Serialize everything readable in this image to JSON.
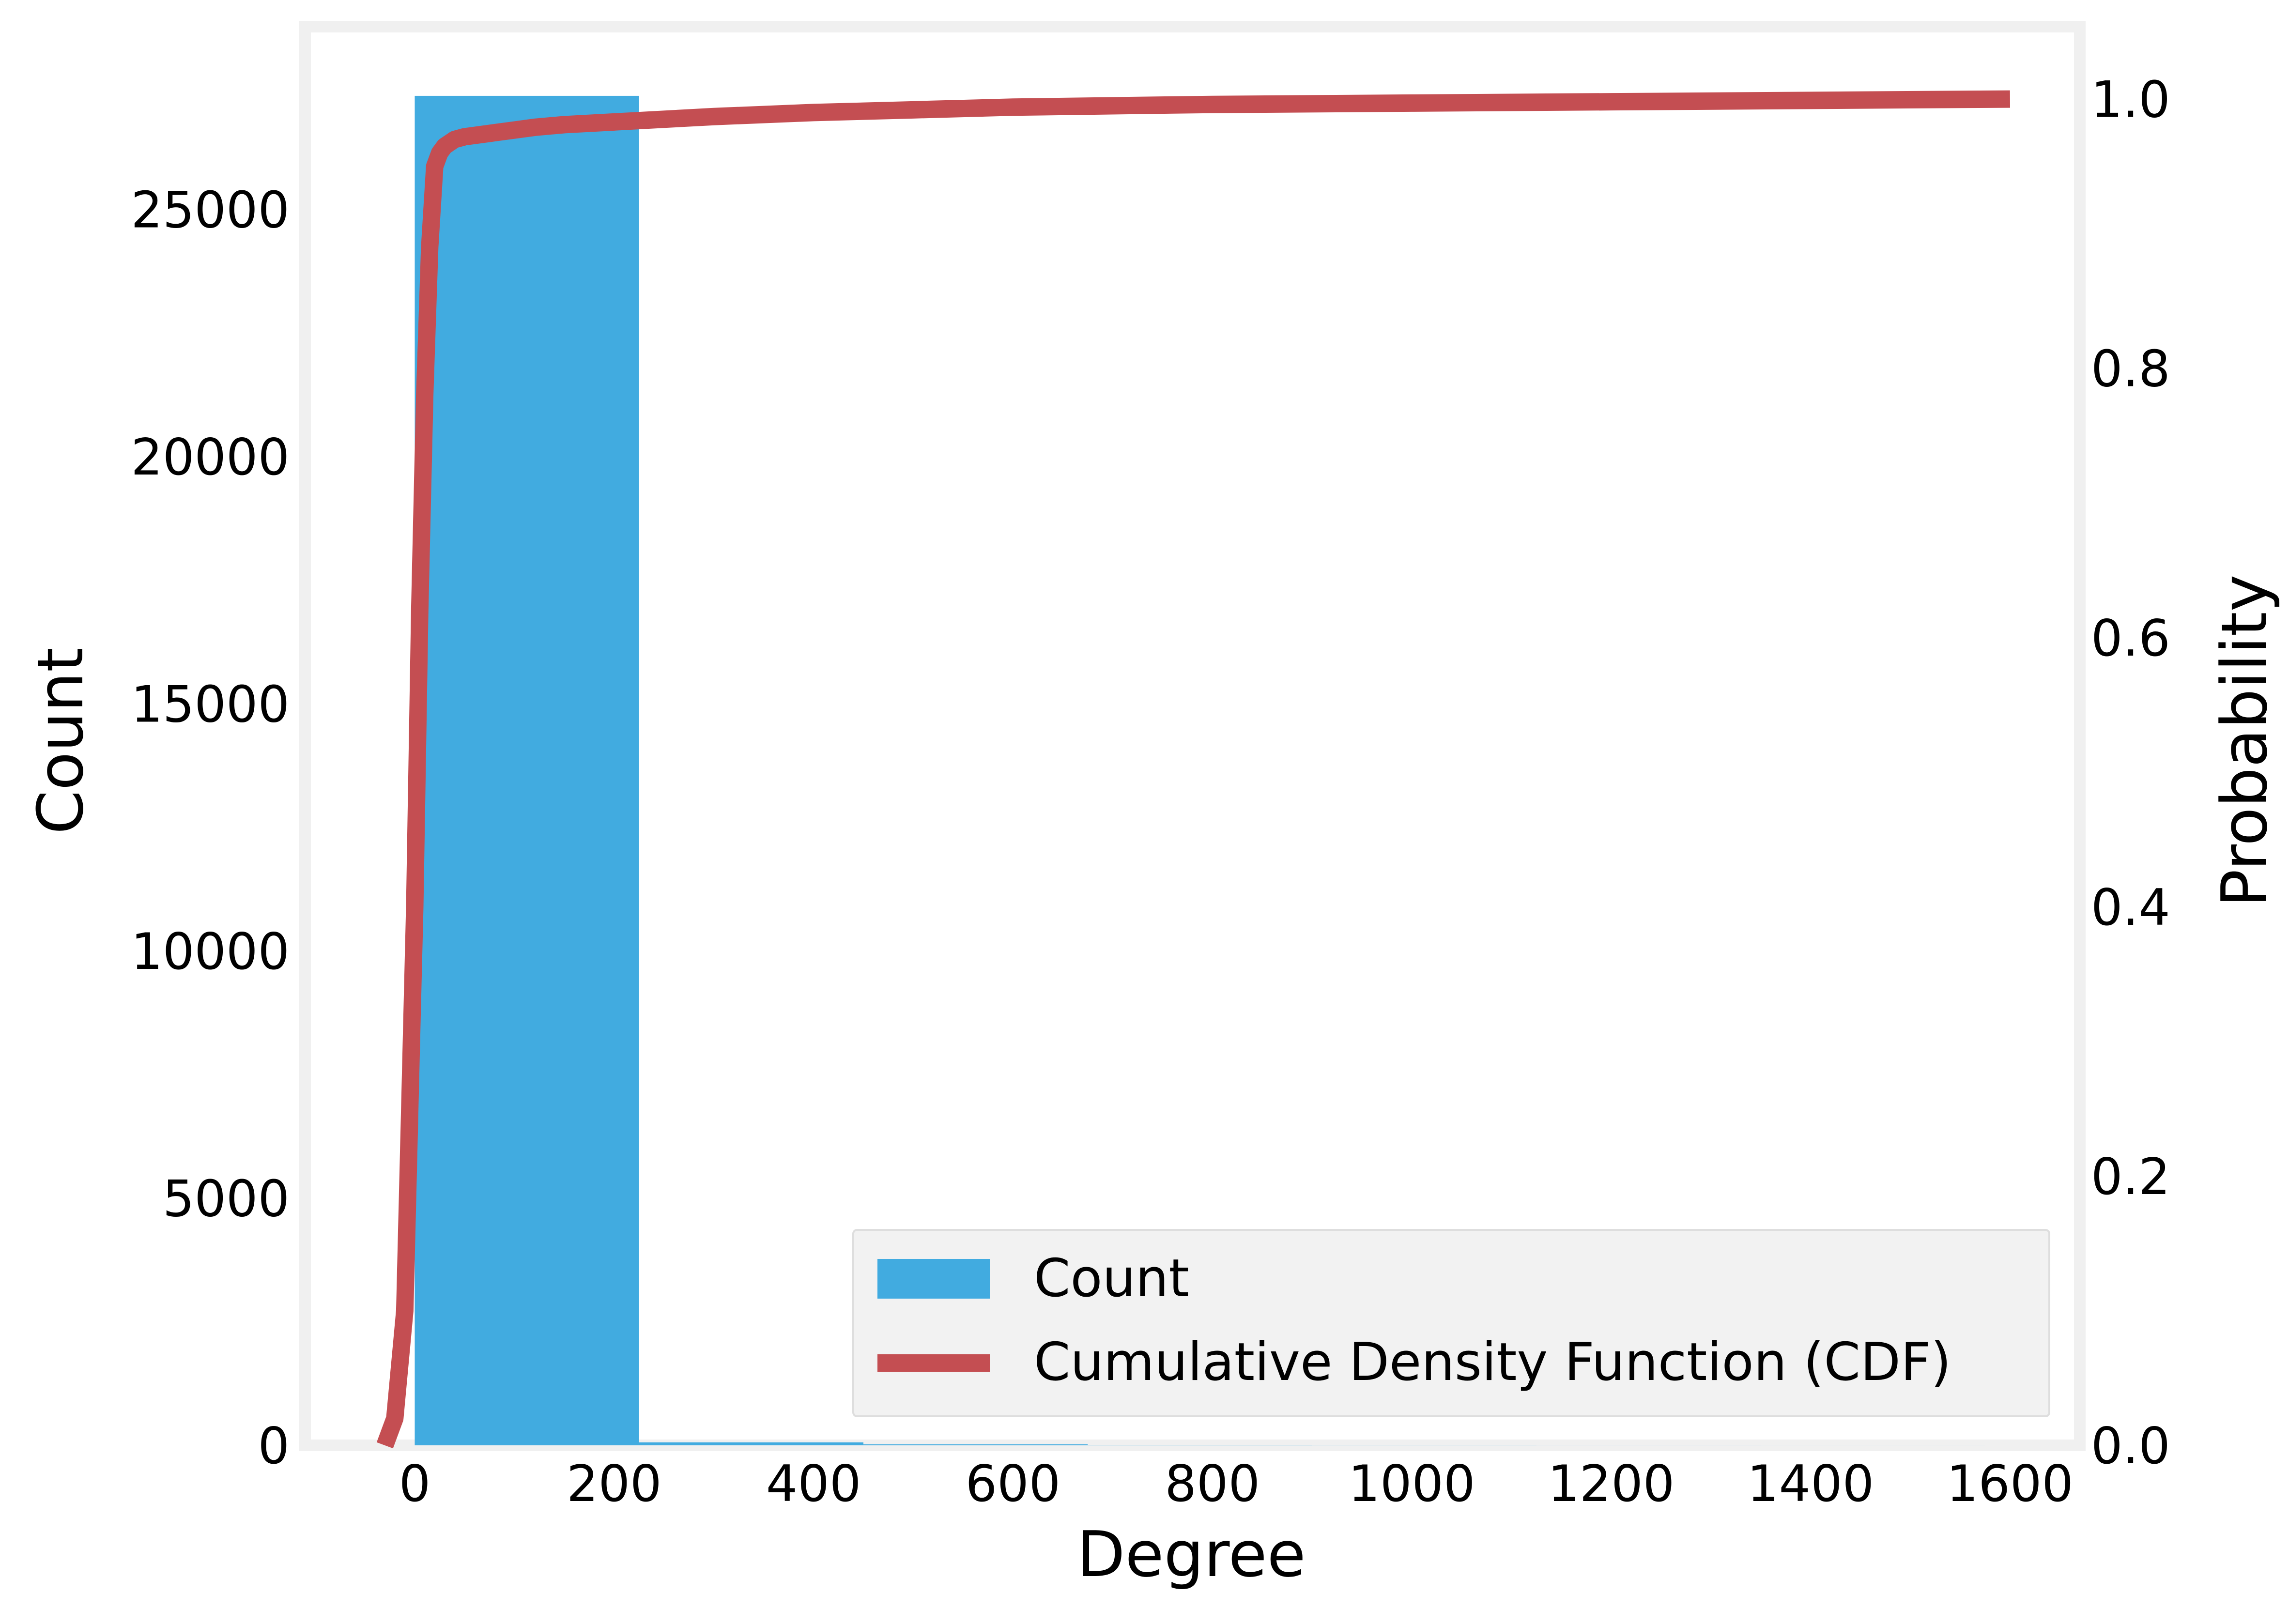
{
  "chart_data": {
    "type": "bar",
    "xlabel": "Degree",
    "ylabel": "Count",
    "y2label": "Probability",
    "xlim": [
      -110,
      1670
    ],
    "ylim": [
      0,
      28700
    ],
    "y2lim": [
      0,
      1.0538
    ],
    "x_ticks": [
      0,
      200,
      400,
      600,
      800,
      1000,
      1200,
      1400,
      1600
    ],
    "y_ticks": [
      0,
      5000,
      10000,
      15000,
      20000,
      25000
    ],
    "y2_ticks": [
      0.0,
      0.2,
      0.4,
      0.6,
      0.8,
      1.0
    ],
    "grid": false,
    "legend_position": "lower-right",
    "series": [
      {
        "name": "Count",
        "type": "bar",
        "color": "#41abe0",
        "bins": [
          {
            "x0": 0,
            "x1": 225,
            "value": 27300
          },
          {
            "x0": 225,
            "x1": 450,
            "value": 60
          },
          {
            "x0": 450,
            "x1": 675,
            "value": 20
          },
          {
            "x0": 675,
            "x1": 900,
            "value": 8
          },
          {
            "x0": 900,
            "x1": 1125,
            "value": 4
          },
          {
            "x0": 1125,
            "x1": 1350,
            "value": 2
          },
          {
            "x0": 1350,
            "x1": 1575,
            "value": 1
          }
        ]
      },
      {
        "name": "Cumulative Density Function (CDF)",
        "type": "line",
        "axis": "right",
        "color": "#c44e52",
        "x": [
          -30,
          -20,
          -10,
          0,
          5,
          10,
          15,
          20,
          25,
          30,
          40,
          50,
          60,
          80,
          100,
          120,
          150,
          200,
          250,
          300,
          400,
          500,
          600,
          800,
          1000,
          1200,
          1400,
          1600
        ],
        "y": [
          0.0,
          0.02,
          0.1,
          0.4,
          0.62,
          0.78,
          0.89,
          0.95,
          0.96,
          0.965,
          0.97,
          0.972,
          0.973,
          0.975,
          0.977,
          0.979,
          0.981,
          0.983,
          0.985,
          0.987,
          0.99,
          0.992,
          0.994,
          0.996,
          0.997,
          0.998,
          0.999,
          1.0
        ]
      }
    ]
  }
}
